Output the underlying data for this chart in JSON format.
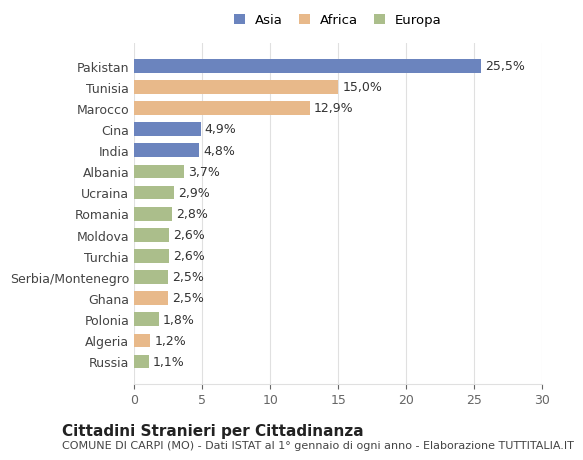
{
  "categories": [
    "Russia",
    "Algeria",
    "Polonia",
    "Ghana",
    "Serbia/Montenegro",
    "Turchia",
    "Moldova",
    "Romania",
    "Ucraina",
    "Albania",
    "India",
    "Cina",
    "Marocco",
    "Tunisia",
    "Pakistan"
  ],
  "values": [
    1.1,
    1.2,
    1.8,
    2.5,
    2.5,
    2.6,
    2.6,
    2.8,
    2.9,
    3.7,
    4.8,
    4.9,
    12.9,
    15.0,
    25.5
  ],
  "labels": [
    "1,1%",
    "1,2%",
    "1,8%",
    "2,5%",
    "2,5%",
    "2,6%",
    "2,6%",
    "2,8%",
    "2,9%",
    "3,7%",
    "4,8%",
    "4,9%",
    "12,9%",
    "15,0%",
    "25,5%"
  ],
  "continents": [
    "Europa",
    "Africa",
    "Europa",
    "Africa",
    "Europa",
    "Europa",
    "Europa",
    "Europa",
    "Europa",
    "Europa",
    "Asia",
    "Asia",
    "Africa",
    "Africa",
    "Asia"
  ],
  "colors": {
    "Asia": "#6b84be",
    "Africa": "#e8b98a",
    "Europa": "#abbe8b"
  },
  "legend_labels": [
    "Asia",
    "Africa",
    "Europa"
  ],
  "title": "Cittadini Stranieri per Cittadinanza",
  "subtitle": "COMUNE DI CARPI (MO) - Dati ISTAT al 1° gennaio di ogni anno - Elaborazione TUTTITALIA.IT",
  "xlim": [
    0,
    30
  ],
  "xticks": [
    0,
    5,
    10,
    15,
    20,
    25,
    30
  ],
  "bg_color": "#ffffff",
  "grid_color": "#e0e0e0",
  "bar_height": 0.65,
  "label_fontsize": 9,
  "tick_fontsize": 9,
  "title_fontsize": 11,
  "subtitle_fontsize": 8
}
